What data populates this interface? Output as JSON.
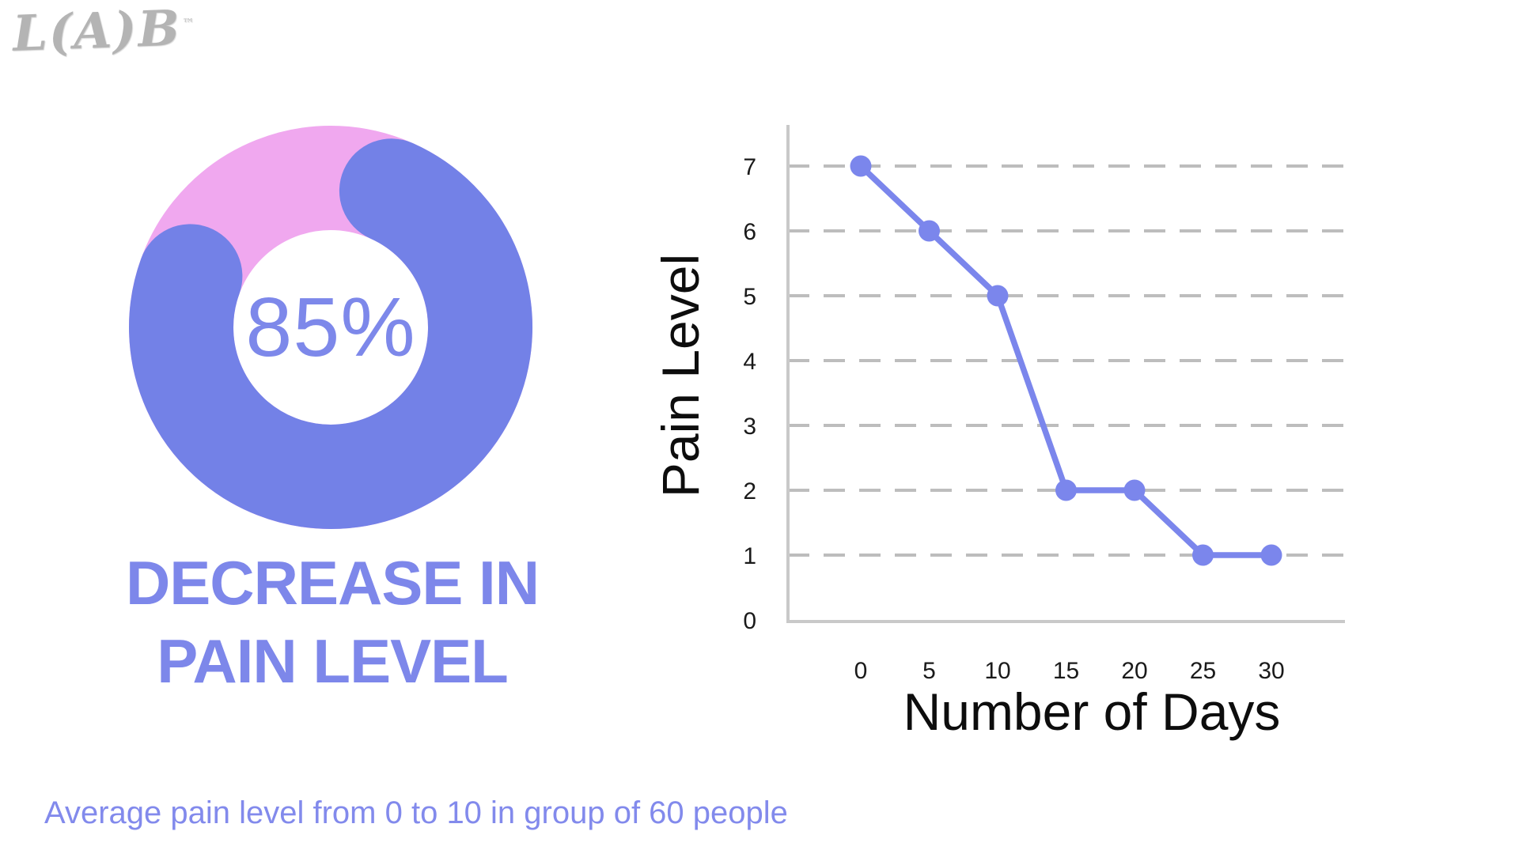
{
  "logo": {
    "text": "L(A)B",
    "trademark": "™"
  },
  "donut": {
    "percentage_label": "85%",
    "value_percent": 85,
    "title_line1": "DECREASE IN",
    "title_line2": "PAIN LEVEL",
    "colors": {
      "ring_primary": "#7381e7",
      "ring_secondary": "#f0a8ef",
      "label_text": "#7d88ea"
    }
  },
  "chart_data": {
    "type": "line",
    "title": "",
    "xlabel": "Number of Days",
    "ylabel": "Pain Level",
    "x": [
      0,
      5,
      10,
      15,
      20,
      25,
      30
    ],
    "values": [
      7,
      6,
      5,
      2,
      2,
      1,
      1
    ],
    "x_ticks": [
      "0",
      "5",
      "10",
      "15",
      "20",
      "25",
      "30"
    ],
    "y_ticks": [
      "0",
      "1",
      "2",
      "3",
      "4",
      "5",
      "6",
      "7"
    ],
    "ylim": [
      0,
      7.6
    ],
    "xlim": [
      0,
      30
    ],
    "grid": "horizontal-dashed",
    "legend": "none",
    "colors": {
      "line": "#7b86ec",
      "marker": "#7b86ec",
      "grid": "#bdbdbd",
      "axis": "#c9c9c9"
    }
  },
  "caption": {
    "text": "Average pain level from 0 to 10 in group of 60 people"
  }
}
